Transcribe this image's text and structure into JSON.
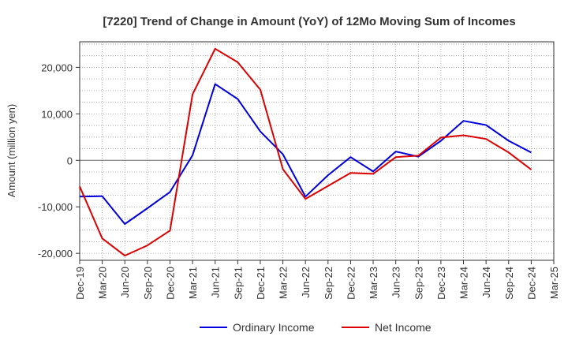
{
  "chart_data": {
    "type": "line",
    "title": "[7220]  Trend of Change in Amount (YoY) of 12Mo Moving Sum of Incomes",
    "xlabel": "",
    "ylabel": "Amount (million yen)",
    "ylim": [
      -21500,
      25500
    ],
    "yticks": [
      -20000,
      -10000,
      0,
      10000,
      20000
    ],
    "ytick_labels": [
      "-20,000",
      "-10,000",
      "0",
      "10,000",
      "20,000"
    ],
    "categories": [
      "Dec-19",
      "Mar-20",
      "Jun-20",
      "Sep-20",
      "Dec-20",
      "Mar-21",
      "Jun-21",
      "Sep-21",
      "Dec-21",
      "Mar-22",
      "Jun-22",
      "Sep-22",
      "Dec-22",
      "Mar-23",
      "Jun-23",
      "Sep-23",
      "Dec-23",
      "Mar-24",
      "Jun-24",
      "Sep-24",
      "Dec-24",
      "Mar-25"
    ],
    "grid": true,
    "legend_position": "bottom-center",
    "series": [
      {
        "name": "Ordinary Income",
        "color": "#0000dd",
        "values": [
          -7800,
          -7700,
          -13700,
          -10300,
          -6800,
          1100,
          16400,
          13200,
          6200,
          1300,
          -7800,
          -3200,
          700,
          -2400,
          1900,
          800,
          4200,
          8500,
          7600,
          4200,
          1700,
          null
        ]
      },
      {
        "name": "Net Income",
        "color": "#dd0000",
        "values": [
          -5600,
          -16800,
          -20500,
          -18300,
          -15100,
          14200,
          24000,
          21100,
          15200,
          -1900,
          -8300,
          -5500,
          -2700,
          -2900,
          700,
          1000,
          4900,
          5400,
          4600,
          1700,
          -2000,
          null
        ]
      }
    ]
  }
}
